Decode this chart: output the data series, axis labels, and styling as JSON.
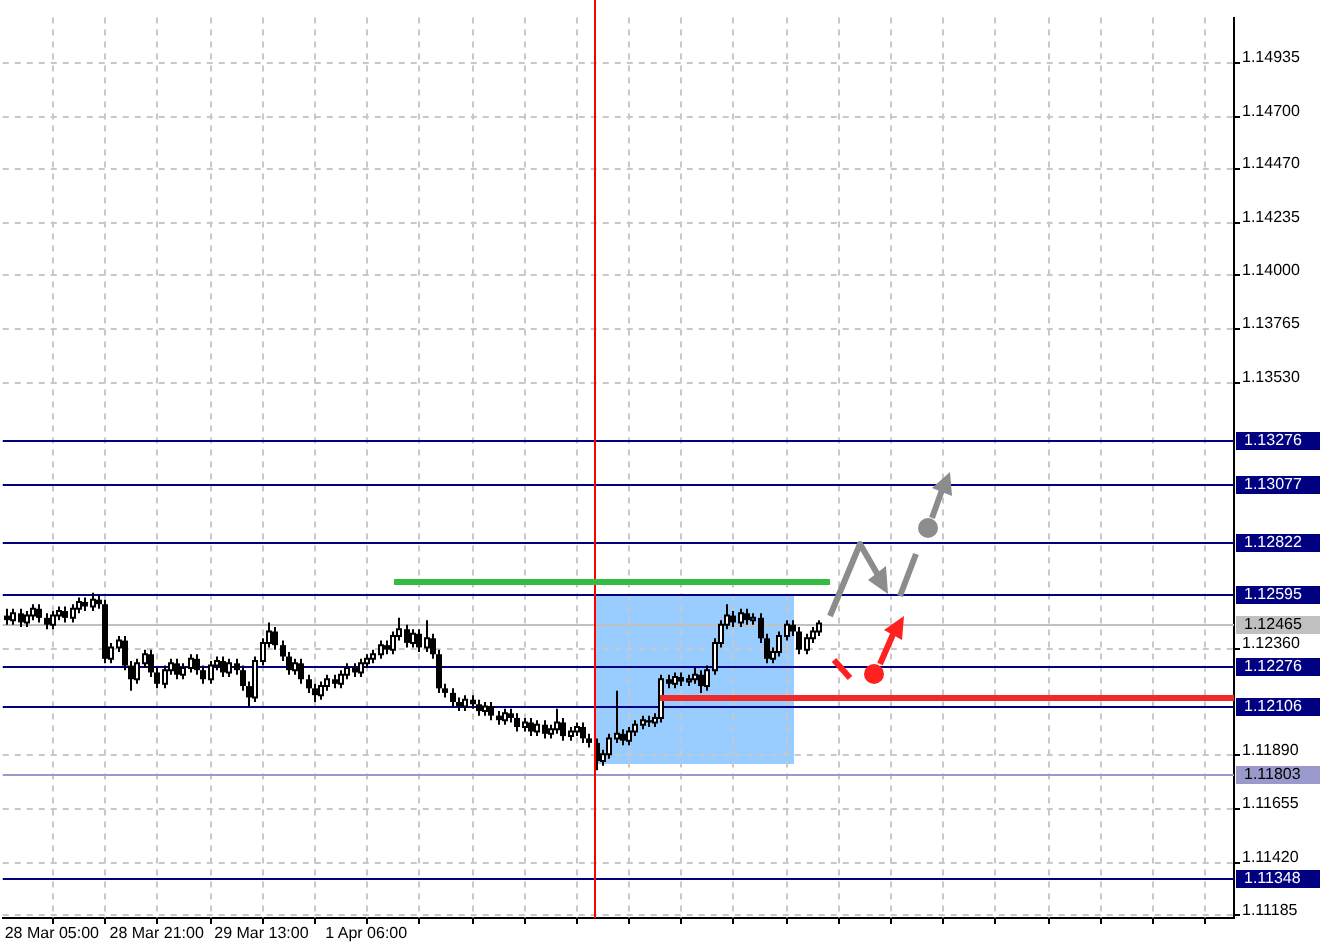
{
  "chart_data": {
    "type": "candlestick",
    "categories": [
      null,
      null,
      null,
      null,
      null,
      null,
      null,
      "28 Mar 05:00",
      null,
      null,
      null,
      null,
      null,
      null,
      null,
      null,
      null,
      null,
      null,
      null,
      null,
      null,
      null,
      "28 Mar 21:00",
      null,
      null,
      null,
      null,
      null,
      null,
      null,
      null,
      null,
      null,
      null,
      null,
      null,
      null,
      null,
      "29 Mar 13:00",
      null,
      null,
      null,
      null,
      null,
      null,
      null,
      null,
      null,
      null,
      null,
      null,
      null,
      null,
      null,
      "1 Apr 06:00",
      null,
      null,
      null,
      null,
      null,
      null,
      null,
      null,
      null,
      null,
      null,
      null,
      null,
      null,
      null,
      null,
      null,
      null,
      null,
      null,
      null,
      null,
      null,
      null,
      null,
      null,
      null,
      null,
      null,
      null,
      null,
      null,
      null,
      null,
      null,
      null,
      null,
      null,
      null,
      null,
      null,
      null,
      null,
      null,
      null,
      null,
      null,
      null,
      null,
      null,
      null,
      null,
      null,
      null,
      null,
      null,
      null,
      null,
      null,
      null,
      null,
      null,
      null,
      null,
      null,
      null,
      null,
      null,
      null,
      null,
      null,
      null,
      null,
      null,
      null,
      null,
      null,
      null,
      null,
      null,
      null,
      null,
      null,
      null,
      null,
      null,
      null,
      null,
      null,
      null,
      null,
      null,
      null,
      null,
      null,
      null,
      null,
      null,
      null,
      null,
      null,
      null,
      null,
      null,
      null,
      null,
      null,
      null,
      null,
      null,
      null,
      null,
      null,
      null,
      null,
      null,
      null,
      null,
      null,
      null,
      null,
      null,
      null,
      null,
      null,
      null,
      null,
      null,
      null,
      null,
      null,
      null
    ],
    "ohlc": [
      [
        1.125,
        1.1253,
        1.1246,
        1.1248
      ],
      [
        1.1248,
        1.1253,
        1.1246,
        1.1251
      ],
      [
        1.1251,
        1.1253,
        1.1245,
        1.1247
      ],
      [
        1.1247,
        1.1252,
        1.1245,
        1.125
      ],
      [
        1.125,
        1.1255,
        1.1248,
        1.1253
      ],
      [
        1.1253,
        1.1255,
        1.1247,
        1.1249
      ],
      [
        1.1249,
        1.1251,
        1.1244,
        1.1246
      ],
      [
        1.1246,
        1.1252,
        1.1244,
        1.125
      ],
      [
        1.125,
        1.1254,
        1.1248,
        1.1252
      ],
      [
        1.1252,
        1.1254,
        1.1247,
        1.1249
      ],
      [
        1.1249,
        1.1255,
        1.1247,
        1.1253
      ],
      [
        1.1253,
        1.1258,
        1.1251,
        1.1256
      ],
      [
        1.1256,
        1.1258,
        1.1252,
        1.1254
      ],
      [
        1.1254,
        1.126,
        1.1252,
        1.1257
      ],
      [
        1.1257,
        1.1259,
        1.1253,
        1.1255
      ],
      [
        1.1255,
        1.1257,
        1.1229,
        1.1231
      ],
      [
        1.1231,
        1.1238,
        1.1229,
        1.1236
      ],
      [
        1.1236,
        1.1241,
        1.1234,
        1.1239
      ],
      [
        1.1239,
        1.1241,
        1.1226,
        1.1228
      ],
      [
        1.1228,
        1.123,
        1.1217,
        1.1222
      ],
      [
        1.1222,
        1.1231,
        1.122,
        1.1229
      ],
      [
        1.1229,
        1.1235,
        1.1227,
        1.1233
      ],
      [
        1.1233,
        1.1235,
        1.1223,
        1.1225
      ],
      [
        1.1225,
        1.1227,
        1.1218,
        1.122
      ],
      [
        1.122,
        1.1228,
        1.1218,
        1.1226
      ],
      [
        1.1226,
        1.1231,
        1.1224,
        1.1229
      ],
      [
        1.1229,
        1.1231,
        1.1222,
        1.1224
      ],
      [
        1.1224,
        1.1229,
        1.1222,
        1.1227
      ],
      [
        1.1227,
        1.1233,
        1.1225,
        1.1231
      ],
      [
        1.1231,
        1.1233,
        1.1224,
        1.1226
      ],
      [
        1.1226,
        1.1228,
        1.122,
        1.1222
      ],
      [
        1.1222,
        1.123,
        1.122,
        1.1228
      ],
      [
        1.1228,
        1.1232,
        1.1226,
        1.123
      ],
      [
        1.123,
        1.1232,
        1.1223,
        1.1225
      ],
      [
        1.1225,
        1.1231,
        1.1223,
        1.1229
      ],
      [
        1.1229,
        1.1231,
        1.1224,
        1.1226
      ],
      [
        1.1226,
        1.1228,
        1.1217,
        1.1219
      ],
      [
        1.1219,
        1.1221,
        1.121,
        1.1214
      ],
      [
        1.1214,
        1.1232,
        1.1212,
        1.123
      ],
      [
        1.123,
        1.124,
        1.1228,
        1.1238
      ],
      [
        1.1238,
        1.1247,
        1.1236,
        1.1243
      ],
      [
        1.1243,
        1.1245,
        1.1235,
        1.1237
      ],
      [
        1.1237,
        1.1239,
        1.123,
        1.1232
      ],
      [
        1.1232,
        1.1234,
        1.1224,
        1.1226
      ],
      [
        1.1226,
        1.1231,
        1.1224,
        1.1229
      ],
      [
        1.1229,
        1.1231,
        1.122,
        1.1222
      ],
      [
        1.1222,
        1.1224,
        1.1216,
        1.1218
      ],
      [
        1.1218,
        1.122,
        1.1212,
        1.1215
      ],
      [
        1.1215,
        1.1221,
        1.1213,
        1.1219
      ],
      [
        1.1219,
        1.1224,
        1.1217,
        1.1222
      ],
      [
        1.1222,
        1.1224,
        1.1218,
        1.122
      ],
      [
        1.122,
        1.1226,
        1.1218,
        1.1224
      ],
      [
        1.1224,
        1.1229,
        1.1222,
        1.1227
      ],
      [
        1.1227,
        1.1229,
        1.1223,
        1.1225
      ],
      [
        1.1225,
        1.1231,
        1.1223,
        1.1229
      ],
      [
        1.1229,
        1.1233,
        1.1227,
        1.1231
      ],
      [
        1.1231,
        1.1235,
        1.1229,
        1.1233
      ],
      [
        1.1233,
        1.1239,
        1.1231,
        1.1237
      ],
      [
        1.1237,
        1.1239,
        1.1233,
        1.1235
      ],
      [
        1.1235,
        1.1243,
        1.1233,
        1.1241
      ],
      [
        1.1241,
        1.1249,
        1.1239,
        1.1244
      ],
      [
        1.1244,
        1.1246,
        1.1236,
        1.1238
      ],
      [
        1.1238,
        1.1244,
        1.1236,
        1.1242
      ],
      [
        1.1242,
        1.1244,
        1.1234,
        1.1236
      ],
      [
        1.1236,
        1.1248,
        1.1234,
        1.124
      ],
      [
        1.124,
        1.1242,
        1.1231,
        1.1233
      ],
      [
        1.1233,
        1.1235,
        1.1216,
        1.1218
      ],
      [
        1.1218,
        1.122,
        1.1214,
        1.1216
      ],
      [
        1.1216,
        1.1218,
        1.121,
        1.1212
      ],
      [
        1.1212,
        1.1214,
        1.1208,
        1.121
      ],
      [
        1.121,
        1.1215,
        1.1208,
        1.1213
      ],
      [
        1.1213,
        1.1215,
        1.1209,
        1.1211
      ],
      [
        1.1211,
        1.1213,
        1.1206,
        1.1208
      ],
      [
        1.1208,
        1.1212,
        1.1206,
        1.121
      ],
      [
        1.121,
        1.1212,
        1.1204,
        1.1206
      ],
      [
        1.1206,
        1.1208,
        1.1202,
        1.1204
      ],
      [
        1.1204,
        1.1209,
        1.1202,
        1.1207
      ],
      [
        1.1207,
        1.1209,
        1.1203,
        1.1205
      ],
      [
        1.1205,
        1.1207,
        1.1199,
        1.1201
      ],
      [
        1.1201,
        1.1205,
        1.1199,
        1.1203
      ],
      [
        1.1203,
        1.1205,
        1.1197,
        1.1199
      ],
      [
        1.1199,
        1.1204,
        1.1197,
        1.1202
      ],
      [
        1.1202,
        1.1204,
        1.1196,
        1.1198
      ],
      [
        1.1198,
        1.1202,
        1.1196,
        1.12
      ],
      [
        1.12,
        1.1209,
        1.1198,
        1.1203
      ],
      [
        1.1203,
        1.1205,
        1.1195,
        1.1197
      ],
      [
        1.1197,
        1.1201,
        1.1195,
        1.1199
      ],
      [
        1.1199,
        1.1203,
        1.1197,
        1.1201
      ],
      [
        1.1201,
        1.1203,
        1.1194,
        1.1196
      ],
      [
        1.1196,
        1.1198,
        1.1192,
        1.1194
      ],
      [
        1.1194,
        1.1196,
        1.1182,
        1.1186
      ],
      [
        1.1186,
        1.1191,
        1.1184,
        1.1189
      ],
      [
        1.1189,
        1.1198,
        1.1187,
        1.1196
      ],
      [
        1.1196,
        1.1217,
        1.1194,
        1.1198
      ],
      [
        1.1198,
        1.12,
        1.1193,
        1.1195
      ],
      [
        1.1195,
        1.1201,
        1.1193,
        1.1199
      ],
      [
        1.1199,
        1.1204,
        1.1197,
        1.1202
      ],
      [
        1.1202,
        1.1206,
        1.12,
        1.1204
      ],
      [
        1.1204,
        1.1206,
        1.1201,
        1.1203
      ],
      [
        1.1203,
        1.1207,
        1.1201,
        1.1205
      ],
      [
        1.1205,
        1.1224,
        1.1203,
        1.1222
      ],
      [
        1.1222,
        1.1224,
        1.1218,
        1.122
      ],
      [
        1.122,
        1.1225,
        1.1218,
        1.1223
      ],
      [
        1.1223,
        1.1225,
        1.1219,
        1.1221
      ],
      [
        1.1221,
        1.1224,
        1.1219,
        1.1222
      ],
      [
        1.1222,
        1.1227,
        1.122,
        1.1224
      ],
      [
        1.1224,
        1.1226,
        1.1216,
        1.1219
      ],
      [
        1.1219,
        1.1228,
        1.1217,
        1.1226
      ],
      [
        1.1226,
        1.124,
        1.1224,
        1.1238
      ],
      [
        1.1238,
        1.1248,
        1.1236,
        1.1246
      ],
      [
        1.1246,
        1.1255,
        1.1244,
        1.125
      ],
      [
        1.125,
        1.1252,
        1.1245,
        1.1247
      ],
      [
        1.1247,
        1.1253,
        1.1245,
        1.1251
      ],
      [
        1.1251,
        1.1253,
        1.1246,
        1.1248
      ],
      [
        1.1248,
        1.1251,
        1.1246,
        1.1249
      ],
      [
        1.1249,
        1.1251,
        1.1238,
        1.124
      ],
      [
        1.124,
        1.1242,
        1.1229,
        1.1231
      ],
      [
        1.1231,
        1.1236,
        1.1229,
        1.1234
      ],
      [
        1.1234,
        1.1243,
        1.1232,
        1.1241
      ],
      [
        1.1241,
        1.1248,
        1.1239,
        1.1246
      ],
      [
        1.1246,
        1.1248,
        1.1241,
        1.1243
      ],
      [
        1.1243,
        1.1245,
        1.1233,
        1.1235
      ],
      [
        1.1235,
        1.1242,
        1.1233,
        1.124
      ],
      [
        1.124,
        1.1245,
        1.1238,
        1.1243
      ],
      [
        1.1243,
        1.1248,
        1.1241,
        1.12465
      ],
      null,
      null,
      null,
      null,
      null,
      null,
      null,
      null,
      null,
      null,
      null,
      null,
      null,
      null,
      null,
      null,
      null,
      null,
      null,
      null,
      null,
      null,
      null,
      null,
      null,
      null,
      null,
      null,
      null,
      null,
      null,
      null,
      null,
      null,
      null,
      null,
      null,
      null,
      null,
      null,
      null,
      null,
      null,
      null,
      null,
      null,
      null,
      null,
      null,
      null,
      null,
      null,
      null,
      null,
      null,
      null,
      null,
      null,
      null,
      null,
      null,
      null,
      null
    ],
    "ylim": [
      1.1117,
      1.1513
    ],
    "yticks": [
      1.14935,
      {
        "value": 1.147,
        "label": "1.14700"
      },
      {
        "value": 1.1447,
        "label": "1.14470"
      },
      1.14235,
      {
        "value": 1.14,
        "label": "1.14000"
      },
      1.13765,
      {
        "value": 1.1353,
        "label": "1.13530"
      },
      {
        "value": 1.1236,
        "label": "1.12360"
      },
      {
        "value": 1.1189,
        "label": "1.11890"
      },
      1.11655,
      {
        "value": 1.1142,
        "label": "1.11420"
      },
      1.11185
    ],
    "grid": true,
    "ref_lines": [
      {
        "axis": "y",
        "value": 1.13276,
        "label": "1.13276",
        "color": "#000080"
      },
      {
        "axis": "y",
        "value": 1.13077,
        "label": "1.13077",
        "color": "#000080"
      },
      {
        "axis": "y",
        "value": 1.12822,
        "label": "1.12822",
        "color": "#000080"
      },
      {
        "axis": "y",
        "value": 1.12595,
        "label": "1.12595",
        "color": "#000080"
      },
      {
        "axis": "y",
        "value": 1.12465,
        "label": "1.12465",
        "color": "#c0c0c0"
      },
      {
        "axis": "y",
        "value": 1.12276,
        "label": "1.12276",
        "color": "#000080"
      },
      {
        "axis": "y",
        "value": 1.12106,
        "label": "1.12106",
        "color": "#000080"
      },
      {
        "axis": "y",
        "value": 1.11803,
        "label": "1.11803",
        "color": "#9999cc"
      },
      {
        "axis": "y",
        "value": 1.11348,
        "label": "1.11348",
        "color": "#000080"
      }
    ]
  }
}
